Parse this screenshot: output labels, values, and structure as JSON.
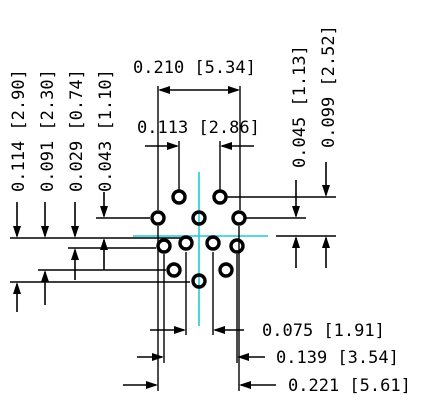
{
  "colors": {
    "outline": "#000000",
    "centerline": "#22c8d8",
    "background": "#ffffff"
  },
  "dimensions": {
    "top_width": "0.210 [5.34]",
    "top_spacing": "0.113 [2.86]",
    "left_1": "0.114 [2.90]",
    "left_2": "0.091 [2.30]",
    "left_3": "0.029 [0.74]",
    "left_4": "0.043 [1.10]",
    "right_1": "0.045 [1.13]",
    "right_2": "0.099 [2.52]",
    "bottom_1": "0.075 [1.91]",
    "bottom_2": "0.139 [3.54]",
    "bottom_3": "0.221 [5.61]"
  },
  "pin_count": 12
}
